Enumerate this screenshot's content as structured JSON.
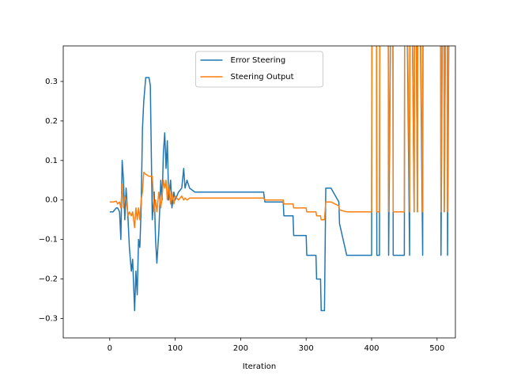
{
  "chart_data": {
    "type": "line",
    "xlabel": "Iteration",
    "x": [
      0,
      5,
      10,
      12,
      15,
      17,
      19,
      21,
      23,
      25,
      28,
      30,
      33,
      35,
      38,
      40,
      42,
      44,
      46,
      48,
      50,
      52,
      55,
      60,
      62,
      65,
      68,
      70,
      72,
      75,
      78,
      80,
      82,
      84,
      86,
      88,
      90,
      93,
      95,
      98,
      100,
      105,
      110,
      113,
      115,
      118,
      122,
      130,
      235,
      237,
      265,
      266,
      280,
      281,
      300,
      301,
      315,
      316,
      322,
      323,
      328,
      330,
      338,
      350,
      351,
      362,
      400,
      401,
      407,
      408,
      412,
      413,
      425,
      426,
      432,
      433,
      450,
      451,
      458,
      459,
      465,
      466,
      470,
      471,
      478,
      479,
      505,
      506,
      510,
      511,
      515,
      516,
      520
    ],
    "series": [
      {
        "name": "Error Steering",
        "color": "#1f77b4",
        "values": [
          -0.03,
          -0.03,
          -0.02,
          -0.02,
          -0.03,
          -0.1,
          0.1,
          0.05,
          -0.05,
          0.03,
          -0.05,
          -0.12,
          -0.18,
          -0.15,
          -0.28,
          -0.18,
          -0.24,
          -0.1,
          -0.12,
          -0.02,
          0.18,
          0.25,
          0.31,
          0.31,
          0.29,
          -0.05,
          0.02,
          -0.1,
          -0.16,
          -0.08,
          0.05,
          0.0,
          0.12,
          0.17,
          0.08,
          0.15,
          0.0,
          0.05,
          -0.02,
          0.02,
          0.0,
          0.02,
          0.03,
          0.08,
          0.03,
          0.05,
          0.03,
          0.02,
          0.02,
          -0.005,
          -0.005,
          -0.04,
          -0.04,
          -0.09,
          -0.09,
          -0.14,
          -0.14,
          -0.2,
          -0.2,
          -0.28,
          -0.28,
          0.03,
          0.03,
          -0.005,
          -0.06,
          -0.14,
          -0.14,
          1,
          1,
          -0.14,
          -0.14,
          1,
          1,
          -0.14,
          1,
          -0.14,
          -0.14,
          1,
          -0.14,
          1,
          -0.03,
          1,
          -0.03,
          1,
          -0.14,
          1,
          1,
          -0.14,
          1,
          -0.03,
          1,
          -0.14,
          1
        ]
      },
      {
        "name": "Steering Output",
        "color": "#ff7f0e",
        "values": [
          -0.005,
          -0.005,
          -0.003,
          -0.01,
          -0.005,
          -0.02,
          0.04,
          -0.02,
          0.01,
          0.0,
          -0.04,
          -0.03,
          -0.04,
          -0.03,
          -0.07,
          -0.02,
          -0.05,
          -0.02,
          -0.05,
          0.0,
          0.02,
          0.07,
          0.065,
          0.06,
          0.06,
          0.06,
          -0.03,
          0.0,
          -0.03,
          0.02,
          -0.02,
          0.01,
          0.05,
          0.03,
          0.05,
          0.0,
          0.04,
          -0.01,
          0.02,
          -0.01,
          0.01,
          0.0,
          0.01,
          0.0,
          0.005,
          0.0,
          0.005,
          0.005,
          0.005,
          0.0,
          0.0,
          -0.01,
          -0.01,
          -0.02,
          -0.02,
          -0.03,
          -0.03,
          -0.04,
          -0.04,
          -0.05,
          -0.05,
          -0.005,
          -0.005,
          -0.015,
          -0.025,
          -0.03,
          -0.03,
          1,
          1,
          -0.03,
          -0.03,
          1,
          1,
          -0.03,
          1,
          -0.03,
          -0.03,
          1,
          -0.03,
          1,
          -0.03,
          1,
          -0.03,
          1,
          -0.03,
          1,
          1,
          -0.03,
          1,
          -0.03,
          1,
          -0.03,
          1
        ]
      }
    ],
    "xlim": [
      -71,
      528
    ],
    "ylim": [
      -0.349,
      0.39
    ],
    "xticks": [
      0,
      100,
      200,
      300,
      400,
      500
    ],
    "yticks": [
      {
        "value": -0.3,
        "label": "−0.3"
      },
      {
        "value": -0.2,
        "label": "−0.2"
      },
      {
        "value": -0.1,
        "label": "−0.1"
      },
      {
        "value": 0,
        "label": "0.0"
      },
      0.1,
      0.2,
      0.3
    ],
    "legend": "upper center"
  }
}
